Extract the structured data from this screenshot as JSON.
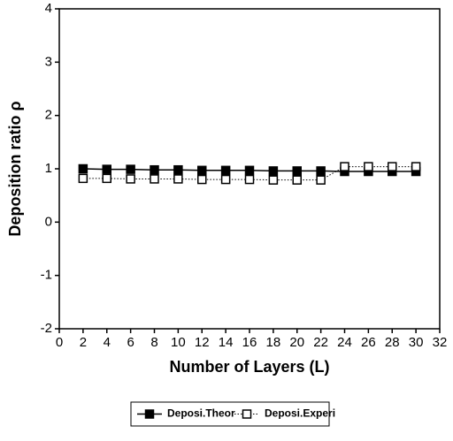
{
  "chart_data": {
    "type": "line",
    "x": [
      2,
      4,
      6,
      8,
      10,
      12,
      14,
      16,
      18,
      20,
      22,
      24,
      26,
      28,
      30
    ],
    "series": [
      {
        "name": "Deposi.Theor",
        "color": "#000000",
        "marker": "filled-square",
        "line": "solid",
        "values": [
          1.0,
          0.99,
          0.99,
          0.98,
          0.98,
          0.97,
          0.97,
          0.97,
          0.96,
          0.96,
          0.96,
          0.95,
          0.95,
          0.95,
          0.95
        ]
      },
      {
        "name": "Deposi.Experi",
        "color": "#000000",
        "marker": "open-square",
        "line": "dotted",
        "values": [
          0.82,
          0.82,
          0.81,
          0.81,
          0.81,
          0.8,
          0.8,
          0.8,
          0.79,
          0.79,
          0.79,
          1.04,
          1.04,
          1.04,
          1.04
        ]
      }
    ],
    "xlabel": "Number of Layers (L)",
    "ylabel": "Deposition ratio ρ",
    "xlim": [
      0,
      32
    ],
    "xticks": [
      0,
      2,
      4,
      6,
      8,
      10,
      12,
      14,
      16,
      18,
      20,
      22,
      24,
      26,
      28,
      30,
      32
    ],
    "ylim": [
      -2,
      4
    ],
    "yticks": [
      -2,
      -1,
      0,
      1,
      2,
      3,
      4
    ],
    "legend": "bottom"
  }
}
